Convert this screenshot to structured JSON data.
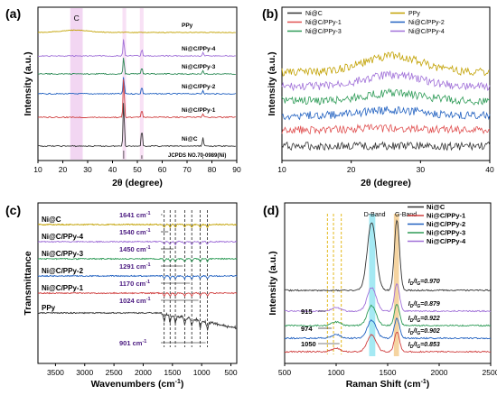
{
  "chart_data": [
    {
      "panel": "(a)",
      "type": "line",
      "xlabel": "2θ (degree)",
      "ylabel": "Intensity (a.u.)",
      "xlim": [
        10,
        90
      ],
      "xticks": [
        "10",
        "20",
        "30",
        "40",
        "50",
        "60",
        "70",
        "80",
        "90"
      ],
      "highlights": [
        {
          "label": "C",
          "range": [
            23,
            28
          ],
          "color": "#e8b4e8"
        },
        {
          "range": [
            44,
            45.5
          ],
          "color": "#f3c8ec"
        },
        {
          "range": [
            51,
            52.5
          ],
          "color": "#f3c8ec"
        }
      ],
      "series": [
        {
          "name": "PPy",
          "color": "#c2a100",
          "peaks": []
        },
        {
          "name": "Ni@C/PPy-4",
          "color": "#a070d8",
          "peaks": [
            44.5,
            51.8,
            76.4
          ]
        },
        {
          "name": "Ni@C/PPy-3",
          "color": "#2e8b57",
          "peaks": [
            44.5,
            51.8,
            76.4
          ]
        },
        {
          "name": "Ni@C/PPy-2",
          "color": "#2060c0",
          "peaks": [
            44.5,
            51.8,
            76.4
          ]
        },
        {
          "name": "Ni@C/PPy-1",
          "color": "#d04040",
          "peaks": [
            44.5,
            51.8,
            76.4
          ]
        },
        {
          "name": "Ni@C",
          "color": "#333333",
          "peaks": [
            44.5,
            51.8,
            76.4
          ]
        }
      ],
      "reference": {
        "label": "JCPDS NO.70-0989(Ni)",
        "sticks": [
          44.5,
          51.8,
          76.4
        ],
        "heights": [
          100,
          42,
          21
        ]
      }
    },
    {
      "panel": "(b)",
      "type": "line",
      "xlabel": "2θ (degree)",
      "ylabel": "Intensity (a.u.)",
      "xlim": [
        10,
        40
      ],
      "xticks": [
        "10",
        "20",
        "30",
        "40"
      ],
      "legend_position": "top",
      "series": [
        {
          "name": "Ni@C",
          "color": "#333333"
        },
        {
          "name": "Ni@C/PPy-1",
          "color": "#e05050"
        },
        {
          "name": "Ni@C/PPy-3",
          "color": "#2e9b57"
        },
        {
          "name": "PPy",
          "color": "#c2a100"
        },
        {
          "name": "Ni@C/PPy-2",
          "color": "#2060c0"
        },
        {
          "name": "Ni@C/PPy-4",
          "color": "#a070d8"
        }
      ]
    },
    {
      "panel": "(c)",
      "type": "line",
      "xlabel": "Wavenumbers (cm",
      "xlabel_sup": "-1",
      "xlabel_end": ")",
      "ylabel": "Transmittance",
      "xlim": [
        3800,
        400
      ],
      "xticks": [
        "3500",
        "3000",
        "2500",
        "2000",
        "1500",
        "1000",
        "500"
      ],
      "marker_lines": [
        1641,
        1540,
        1450,
        1291,
        1170,
        1024,
        901
      ],
      "annotations": [
        {
          "value": "1641 cm",
          "sup": "-1"
        },
        {
          "value": "1540 cm",
          "sup": "-1"
        },
        {
          "value": "1450 cm",
          "sup": "-1"
        },
        {
          "value": "1291 cm",
          "sup": "-1"
        },
        {
          "value": "1170 cm",
          "sup": "-1"
        },
        {
          "value": "1024 cm",
          "sup": "-1"
        },
        {
          "value": "901 cm",
          "sup": "-1"
        }
      ],
      "series": [
        {
          "name": "Ni@C",
          "color": "#c2a100"
        },
        {
          "name": "Ni@C/PPy-4",
          "color": "#a070d8"
        },
        {
          "name": "Ni@C/PPy-3",
          "color": "#2e9b57"
        },
        {
          "name": "Ni@C/PPy-2",
          "color": "#2060c0"
        },
        {
          "name": "Ni@C/PPy-1",
          "color": "#d04040"
        },
        {
          "name": "PPy",
          "color": "#333333"
        }
      ]
    },
    {
      "panel": "(d)",
      "type": "line",
      "xlabel": "Raman Shift (cm",
      "xlabel_sup": "-1",
      "xlabel_end": ")",
      "ylabel": "Intensity (a.u.)",
      "xlim": [
        500,
        2500
      ],
      "xticks": [
        "500",
        "1000",
        "1500",
        "2000",
        "2500"
      ],
      "band_labels": [
        "D-Band",
        "G-Band"
      ],
      "peak_labels": [
        "915",
        "974",
        "1050"
      ],
      "ratios": [
        "I",
        "D",
        "/I",
        "G",
        "=0.970",
        "=0.879",
        "=0.922",
        "=0.902",
        "=0.853"
      ],
      "series": [
        {
          "name": "Ni@C",
          "color": "#333333",
          "ratio": 0.97
        },
        {
          "name": "Ni@C/PPy-1",
          "color": "#d04040",
          "ratio": 0.853
        },
        {
          "name": "Ni@C/PPy-2",
          "color": "#2060c0",
          "ratio": 0.902
        },
        {
          "name": "Ni@C/PPy-3",
          "color": "#2e9b57",
          "ratio": 0.922
        },
        {
          "name": "Ni@C/PPy-4",
          "color": "#a070d8",
          "ratio": 0.879
        }
      ]
    }
  ]
}
